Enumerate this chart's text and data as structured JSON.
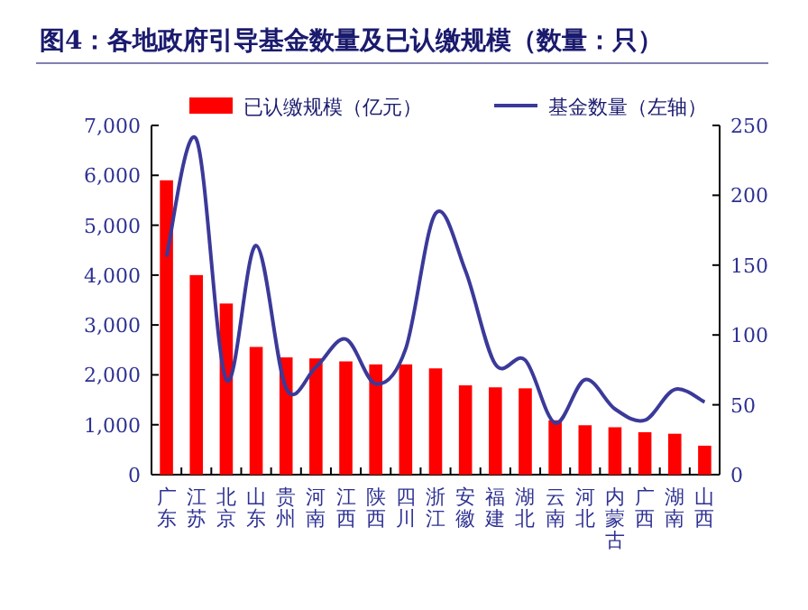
{
  "chart_data": {
    "type": "bar",
    "title": "图4：各地政府引导基金数量及已认缴规模（数量：只）",
    "categories": [
      "广东",
      "江苏",
      "北京",
      "山东",
      "贵州",
      "河南",
      "江西",
      "陕西",
      "四川",
      "浙江",
      "安徽",
      "福建",
      "湖北",
      "云南",
      "河北",
      "内蒙古",
      "广西",
      "湖南",
      "山西"
    ],
    "series": [
      {
        "name": "已认缴规模（亿元）",
        "color": "#ff0000",
        "values": [
          5900,
          4000,
          3430,
          2560,
          2350,
          2330,
          2270,
          2210,
          2210,
          2130,
          1790,
          1750,
          1730,
          1090,
          990,
          950,
          850,
          820,
          580
        ]
      },
      {
        "name": "基金数量（左轴）",
        "type": "line",
        "axis": "y2",
        "color": "#3b3a9a",
        "values": [
          156,
          240,
          68,
          164,
          62,
          77,
          97,
          65,
          90,
          187,
          146,
          79,
          82,
          37,
          68,
          47,
          39,
          61,
          52
        ]
      }
    ],
    "ylim": [
      0,
      7000
    ],
    "yticks": [
      0,
      {
        "value": 1000,
        "label": "1,000"
      },
      {
        "value": 2000,
        "label": "2,000"
      },
      {
        "value": 3000,
        "label": "3,000"
      },
      {
        "value": 4000,
        "label": "4,000"
      },
      {
        "value": 5000,
        "label": "5,000"
      },
      {
        "value": 6000,
        "label": "6,000"
      },
      {
        "value": 7000,
        "label": "7,000"
      }
    ],
    "y2lim": [
      0,
      250
    ],
    "y2ticks": [
      0,
      50,
      100,
      150,
      200,
      250
    ],
    "legend": "top",
    "grid": false,
    "marker": "none",
    "line_style": "solid"
  }
}
